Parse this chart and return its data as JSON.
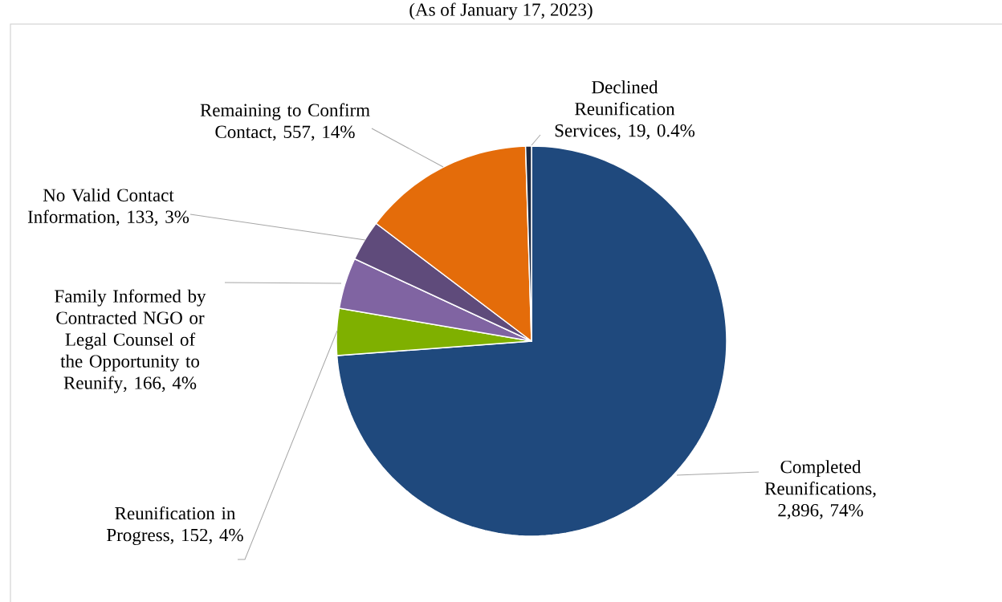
{
  "chart_data": {
    "type": "pie",
    "subtitle": "(As of January 17, 2023)",
    "categories": [
      "Completed Reunifications",
      "Reunification in Progress",
      "Family Informed by Contracted NGO or Legal Counsel of the Opportunity to Reunify",
      "No Valid Contact Information",
      "Remaining to Confirm Contact",
      "Declined Reunification Services"
    ],
    "values": [
      2896,
      152,
      166,
      133,
      557,
      19
    ],
    "colors": [
      "#1f497d",
      "#7fb000",
      "#8064a2",
      "#5f4b7b",
      "#e46c0a",
      "#1b2a44"
    ],
    "value_labels": [
      ", 2,896, 74%",
      ", 152, 4%",
      ", 166, 4%",
      ", 133, 3%",
      ", 557, 14%",
      ", 19, 0.4%"
    ]
  }
}
